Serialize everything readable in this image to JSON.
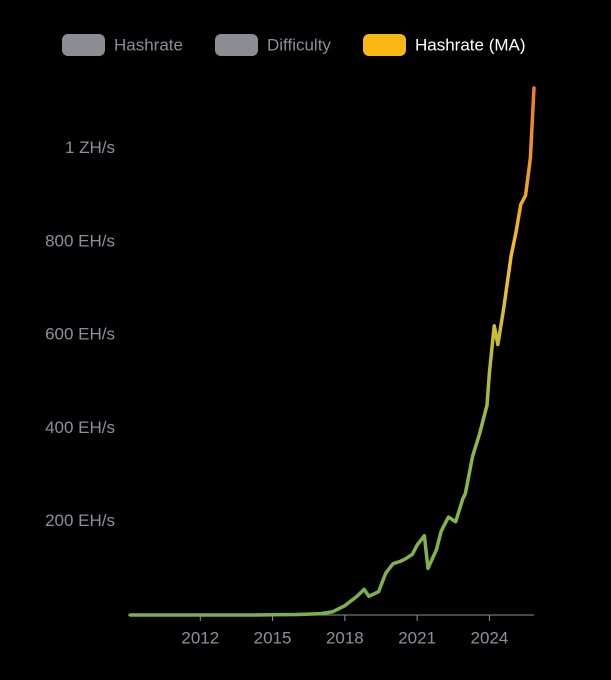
{
  "chart_data": {
    "type": "line",
    "x": [
      2009.1,
      2010,
      2011,
      2012,
      2013,
      2014,
      2015,
      2016,
      2016.5,
      2017,
      2017.5,
      2018,
      2018.5,
      2018.8,
      2019,
      2019.4,
      2019.7,
      2020,
      2020.3,
      2020.5,
      2020.8,
      2021,
      2021.3,
      2021.45,
      2021.8,
      2022,
      2022.3,
      2022.6,
      2022.9,
      2023,
      2023.3,
      2023.6,
      2023.9,
      2024,
      2024.2,
      2024.35,
      2024.6,
      2024.9,
      2025.1,
      2025.3,
      2025.5,
      2025.7,
      2025.85
    ],
    "series": [
      {
        "name": "Hashrate",
        "color": "#8a8d93",
        "visible": false
      },
      {
        "name": "Difficulty",
        "color": "#8a8d93",
        "visible": false
      },
      {
        "name": "Hashrate (MA)",
        "color": "#fbb714",
        "visible": true,
        "values": [
          0,
          0,
          0,
          0,
          0,
          0,
          0.5,
          1,
          2,
          3,
          7,
          20,
          40,
          55,
          40,
          50,
          90,
          110,
          115,
          120,
          130,
          150,
          170,
          100,
          140,
          180,
          210,
          200,
          250,
          260,
          340,
          390,
          450,
          520,
          620,
          580,
          660,
          770,
          820,
          880,
          900,
          980,
          1130
        ]
      }
    ],
    "line_gradient": [
      "#7cb04a",
      "#8cb848",
      "#f5c02a",
      "#ee7a2a"
    ],
    "xlim": [
      2009,
      2025.85
    ],
    "xticks": [
      2012,
      2015,
      2018,
      2021,
      2024
    ],
    "ylim": [
      0,
      1130
    ],
    "yticks": [
      {
        "value": 200,
        "label": "200 EH/s"
      },
      {
        "value": 400,
        "label": "400 EH/s"
      },
      {
        "value": 600,
        "label": "600 EH/s"
      },
      {
        "value": 800,
        "label": "800 EH/s"
      },
      {
        "value": 1000,
        "label": "1 ZH/s"
      }
    ],
    "grid": false
  }
}
